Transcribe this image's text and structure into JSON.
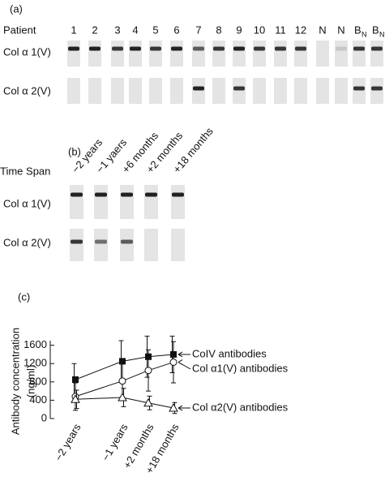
{
  "panel_a": {
    "label": "(a)",
    "header": "Patient",
    "columns": [
      "1",
      "2",
      "3",
      "4",
      "5",
      "6",
      "7",
      "8",
      "9",
      "10",
      "11",
      "12",
      "N",
      "N",
      {
        "main": "B",
        "sub": "N"
      },
      {
        "main": "B",
        "sub": "N"
      }
    ],
    "rows": [
      "Col α 1(V)",
      "Col α 2(V)"
    ]
  },
  "panel_b": {
    "label": "(b)",
    "header": "Time Span",
    "columns": [
      "−2 years",
      "−1 yaers",
      "+6 months",
      "+2 months",
      "+18 months"
    ],
    "rows": [
      "Col α 1(V)",
      "Col α 2(V)"
    ]
  },
  "chart_data": {
    "type": "line",
    "panel_label": "(c)",
    "y_label": [
      "Antibody concentration",
      "(ng/ml)"
    ],
    "categories": [
      "−2 years",
      "−1 years",
      "+2 months",
      "+18 months"
    ],
    "ylim": [
      0,
      1700
    ],
    "yticks": [
      0,
      400,
      800,
      1200,
      1600
    ],
    "series": [
      {
        "name": "CoIV antibodies",
        "marker": "square-filled",
        "color": "#111",
        "values": [
          850,
          1250,
          1350,
          1400
        ],
        "errors": [
          350,
          450,
          450,
          400
        ]
      },
      {
        "name": "Col α1(V) antibodies",
        "marker": "circle-open",
        "color": "#111",
        "values": [
          480,
          820,
          1050,
          1230
        ],
        "errors": [
          300,
          400,
          450,
          450
        ]
      },
      {
        "name": "Col α2(V) antibodies",
        "marker": "triangle-open",
        "color": "#111",
        "values": [
          420,
          460,
          340,
          230
        ],
        "errors": [
          200,
          200,
          150,
          120
        ]
      }
    ]
  }
}
